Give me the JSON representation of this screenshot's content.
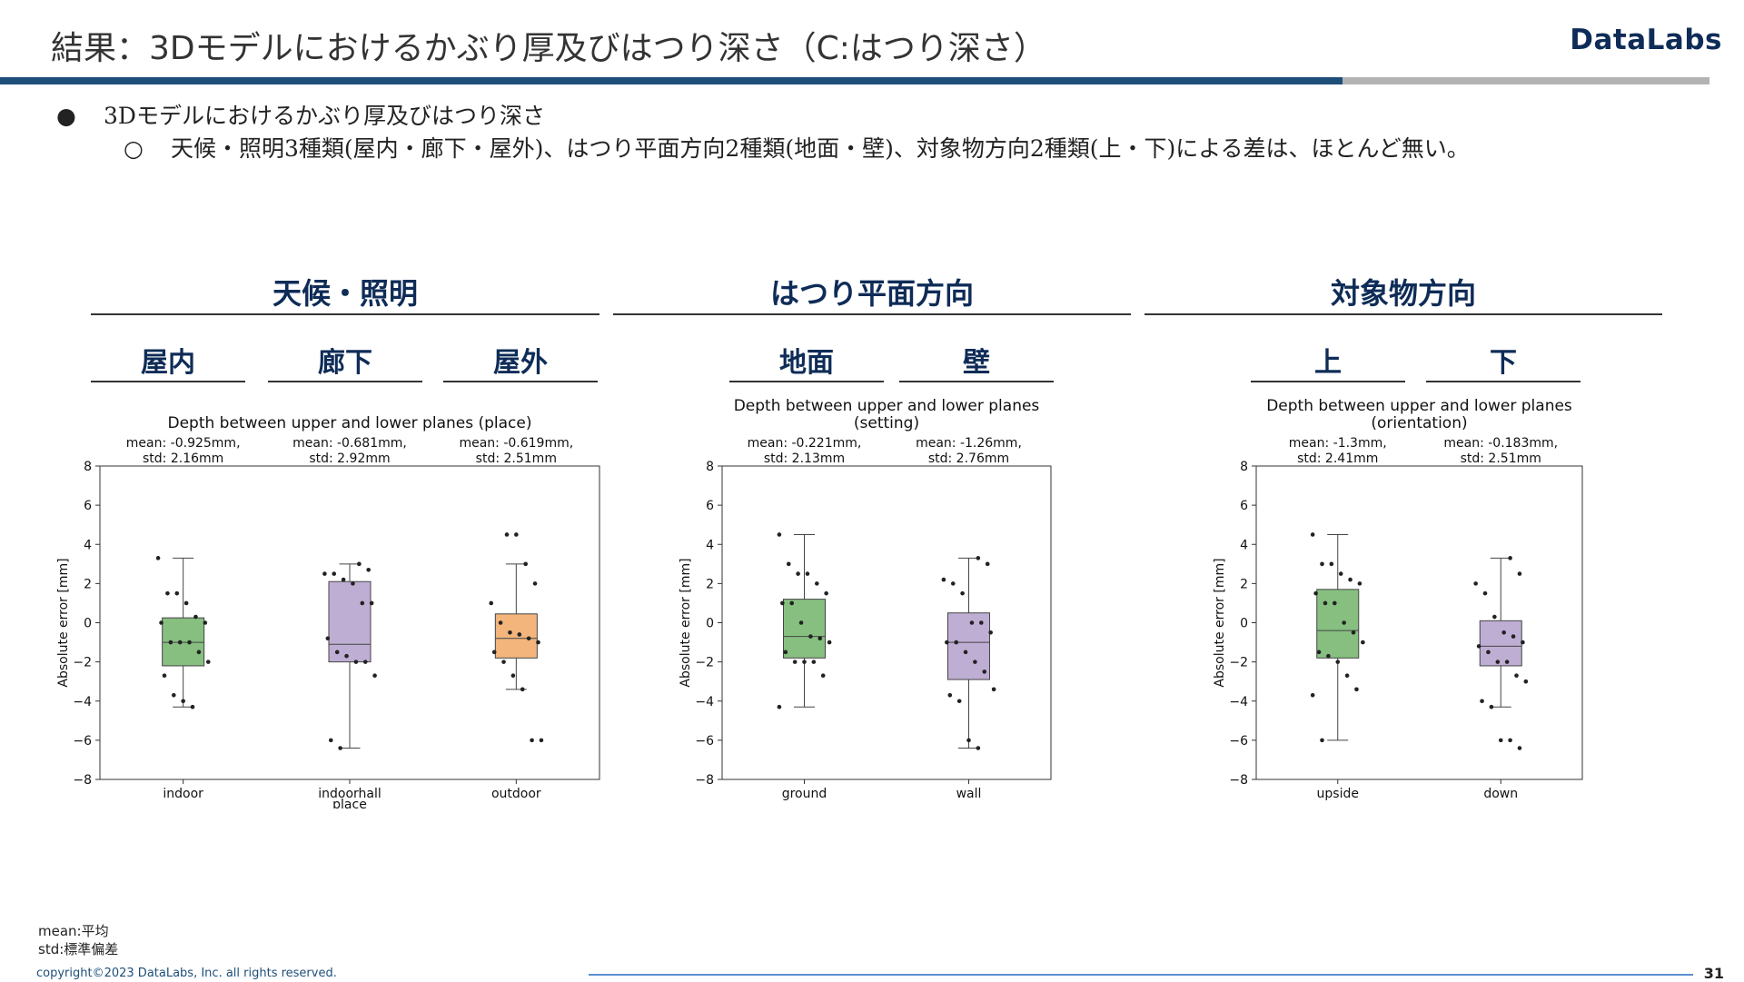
{
  "header": {
    "title": "結果：3Dモデルにおけるかぶり厚及びはつり深さ（C:はつり深さ）",
    "logo": "DataLabs",
    "band_dark_color": "#1f4e79",
    "band_light_color": "#b3b3b3"
  },
  "bullets": {
    "level1_mark": "●",
    "level1": "3Dモデルにおけるかぶり厚及びはつり深さ",
    "level2_mark": "○",
    "level2": "天候・照明3種類(屋内・廊下・屋外)、はつり平面方向2種類(地面・壁)、対象物方向2種類(上・下)による差は、ほとんど無い。"
  },
  "groups": [
    {
      "title": "天候・照明",
      "subs": [
        "屋内",
        "廊下",
        "屋外"
      ]
    },
    {
      "title": "はつり平面方向",
      "subs": [
        "地面",
        "壁"
      ]
    },
    {
      "title": "対象物方向",
      "subs": [
        "上",
        "下"
      ]
    }
  ],
  "chart_data": [
    {
      "type": "box",
      "title": "Depth between upper and lower planes (place)",
      "ylabel": "Absolute error [mm]",
      "xlabel": "place",
      "ylim": [
        -8,
        8
      ],
      "yticks": [
        "8",
        "6",
        "4",
        "2",
        "0",
        "−2",
        "−4",
        "−6",
        "−8"
      ],
      "categories": [
        "indoor",
        "indoorhall",
        "outdoor"
      ],
      "stats_text": [
        [
          "mean: -0.925mm,",
          "std: 2.16mm"
        ],
        [
          "mean: -0.681mm,",
          "std: 2.92mm"
        ],
        [
          "mean: -0.619mm,",
          "std: 2.51mm"
        ]
      ],
      "colors": [
        "#86bf80",
        "#bfaed3",
        "#f3b57c"
      ],
      "boxes": [
        {
          "whislo": -4.3,
          "q1": -2.2,
          "med": -1.0,
          "q3": 0.25,
          "whishi": 3.3
        },
        {
          "whislo": -6.4,
          "q1": -2.0,
          "med": -1.1,
          "q3": 2.1,
          "whishi": 3.0
        },
        {
          "whislo": -3.4,
          "q1": -1.8,
          "med": -0.8,
          "q3": 0.45,
          "whishi": 3.0
        }
      ],
      "points": [
        [
          3.3,
          1.5,
          1.5,
          1.0,
          0.3,
          0.0,
          0.0,
          -1.0,
          -1.0,
          -1.0,
          -1.5,
          -2.0,
          -2.7,
          -3.7,
          -4.0,
          -4.3
        ],
        [
          3.0,
          2.7,
          2.5,
          2.5,
          2.2,
          2.0,
          1.0,
          1.0,
          -0.8,
          -1.5,
          -1.7,
          -2.0,
          -2.0,
          -2.7,
          -6.0,
          -6.4
        ],
        [
          4.5,
          4.5,
          3.0,
          2.0,
          1.0,
          0.0,
          -0.5,
          -0.6,
          -0.8,
          -1.0,
          -1.5,
          -2.0,
          -2.7,
          -3.4,
          -6.0,
          -6.0
        ]
      ]
    },
    {
      "type": "box",
      "title": "Depth between upper and lower planes (setting)",
      "ylabel": "Absolute error [mm]",
      "xlabel": "",
      "ylim": [
        -8,
        8
      ],
      "yticks": [
        "8",
        "6",
        "4",
        "2",
        "0",
        "−2",
        "−4",
        "−6",
        "−8"
      ],
      "categories": [
        "ground",
        "wall"
      ],
      "stats_text": [
        [
          "mean: -0.221mm,",
          "std: 2.13mm"
        ],
        [
          "mean: -1.26mm,",
          "std: 2.76mm"
        ]
      ],
      "colors": [
        "#86bf80",
        "#bfaed3"
      ],
      "boxes": [
        {
          "whislo": -4.3,
          "q1": -1.8,
          "med": -0.7,
          "q3": 1.2,
          "whishi": 4.5
        },
        {
          "whislo": -6.4,
          "q1": -2.9,
          "med": -1.0,
          "q3": 0.5,
          "whishi": 3.3
        }
      ],
      "points": [
        [
          4.5,
          3.0,
          2.5,
          2.5,
          2.0,
          1.5,
          1.0,
          1.0,
          0.0,
          -0.7,
          -0.8,
          -1.0,
          -1.5,
          -2.0,
          -2.0,
          -2.0,
          -2.7,
          -4.3
        ],
        [
          3.3,
          3.0,
          2.2,
          2.0,
          1.5,
          0.0,
          0.0,
          -0.5,
          -1.0,
          -1.0,
          -1.5,
          -2.0,
          -2.5,
          -3.4,
          -3.7,
          -4.0,
          -6.0,
          -6.4
        ]
      ]
    },
    {
      "type": "box",
      "title": "Depth between upper and lower planes (orientation)",
      "ylabel": "Absolute error [mm]",
      "xlabel": "",
      "ylim": [
        -8,
        8
      ],
      "yticks": [
        "8",
        "6",
        "4",
        "2",
        "0",
        "−2",
        "−4",
        "−6",
        "−8"
      ],
      "categories": [
        "upside",
        "down"
      ],
      "stats_text": [
        [
          "mean: -1.3mm,",
          "std: 2.41mm"
        ],
        [
          "mean: -0.183mm,",
          "std: 2.51mm"
        ]
      ],
      "colors": [
        "#86bf80",
        "#bfaed3"
      ],
      "boxes": [
        {
          "whislo": -6.0,
          "q1": -1.8,
          "med": -0.4,
          "q3": 1.7,
          "whishi": 4.5
        },
        {
          "whislo": -4.3,
          "q1": -2.2,
          "med": -1.2,
          "q3": 0.1,
          "whishi": 3.3
        }
      ],
      "points": [
        [
          4.5,
          3.0,
          3.0,
          2.5,
          2.2,
          2.0,
          1.5,
          1.0,
          1.0,
          0.0,
          -0.5,
          -1.0,
          -1.5,
          -1.7,
          -2.0,
          -2.7,
          -3.4,
          -3.7,
          -6.0
        ],
        [
          3.3,
          2.5,
          2.0,
          1.5,
          0.3,
          -0.5,
          -0.7,
          -1.0,
          -1.2,
          -1.5,
          -2.0,
          -2.0,
          -2.7,
          -3.0,
          -4.0,
          -4.3,
          -6.0,
          -6.0,
          -6.4
        ]
      ]
    }
  ],
  "legend": {
    "line1": "mean:平均",
    "line2": "std:標準偏差"
  },
  "footer": {
    "copyright": "copyright©2023 DataLabs, Inc. all rights reserved.",
    "page": "31"
  }
}
